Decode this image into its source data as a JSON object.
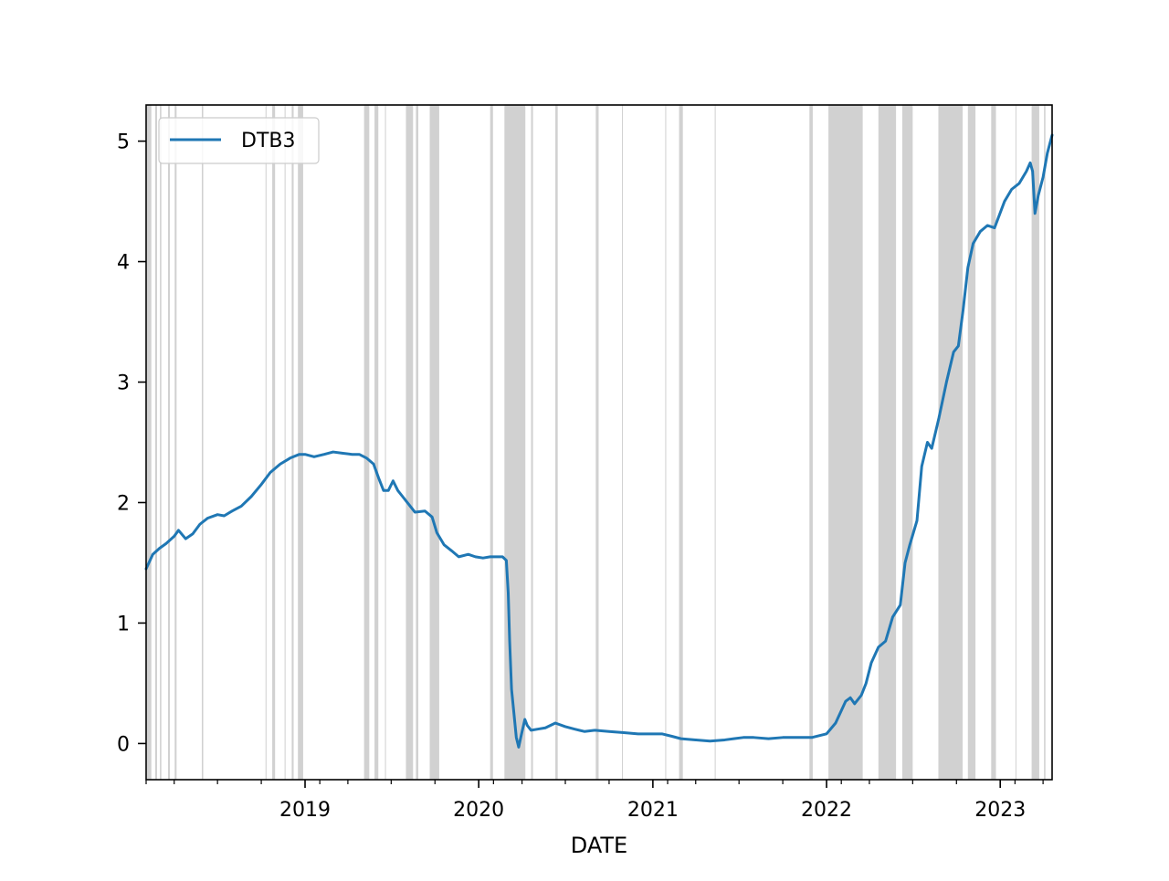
{
  "chart_data": {
    "type": "line",
    "title": "",
    "xlabel": "DATE",
    "ylabel": "",
    "xlim": [
      "2018-02-01",
      "2023-04-20"
    ],
    "ylim": [
      -0.3,
      5.3
    ],
    "x_ticks": [
      "2019",
      "2020",
      "2021",
      "2022",
      "2023"
    ],
    "y_ticks": [
      "0",
      "1",
      "2",
      "3",
      "4",
      "5"
    ],
    "grid": false,
    "legend": {
      "position": "top-left",
      "entries": [
        "DTB3"
      ]
    },
    "colors": {
      "series": "#1f77b4",
      "highlight": "#999999"
    },
    "series": [
      {
        "name": "DTB3",
        "points": [
          [
            "2018-02-01",
            1.45
          ],
          [
            "2018-02-15",
            1.57
          ],
          [
            "2018-03-01",
            1.62
          ],
          [
            "2018-03-15",
            1.66
          ],
          [
            "2018-04-01",
            1.72
          ],
          [
            "2018-04-10",
            1.77
          ],
          [
            "2018-04-25",
            1.7
          ],
          [
            "2018-05-10",
            1.74
          ],
          [
            "2018-05-25",
            1.82
          ],
          [
            "2018-06-10",
            1.87
          ],
          [
            "2018-07-01",
            1.9
          ],
          [
            "2018-07-15",
            1.89
          ],
          [
            "2018-08-01",
            1.93
          ],
          [
            "2018-08-20",
            1.97
          ],
          [
            "2018-09-10",
            2.05
          ],
          [
            "2018-10-01",
            2.15
          ],
          [
            "2018-10-20",
            2.25
          ],
          [
            "2018-11-10",
            2.32
          ],
          [
            "2018-12-01",
            2.37
          ],
          [
            "2018-12-20",
            2.4
          ],
          [
            "2019-01-01",
            2.4
          ],
          [
            "2019-01-20",
            2.38
          ],
          [
            "2019-02-10",
            2.4
          ],
          [
            "2019-03-01",
            2.42
          ],
          [
            "2019-03-20",
            2.41
          ],
          [
            "2019-04-10",
            2.4
          ],
          [
            "2019-04-25",
            2.4
          ],
          [
            "2019-05-10",
            2.37
          ],
          [
            "2019-05-25",
            2.32
          ],
          [
            "2019-06-05",
            2.2
          ],
          [
            "2019-06-15",
            2.1
          ],
          [
            "2019-06-25",
            2.1
          ],
          [
            "2019-07-05",
            2.18
          ],
          [
            "2019-07-15",
            2.1
          ],
          [
            "2019-07-25",
            2.05
          ],
          [
            "2019-08-10",
            1.97
          ],
          [
            "2019-08-20",
            1.92
          ],
          [
            "2019-09-10",
            1.93
          ],
          [
            "2019-09-25",
            1.88
          ],
          [
            "2019-10-05",
            1.75
          ],
          [
            "2019-10-20",
            1.65
          ],
          [
            "2019-11-05",
            1.6
          ],
          [
            "2019-11-20",
            1.55
          ],
          [
            "2019-12-10",
            1.57
          ],
          [
            "2019-12-25",
            1.55
          ],
          [
            "2020-01-10",
            1.54
          ],
          [
            "2020-01-25",
            1.55
          ],
          [
            "2020-02-10",
            1.55
          ],
          [
            "2020-02-20",
            1.55
          ],
          [
            "2020-02-28",
            1.52
          ],
          [
            "2020-03-03",
            1.25
          ],
          [
            "2020-03-06",
            0.85
          ],
          [
            "2020-03-10",
            0.45
          ],
          [
            "2020-03-15",
            0.25
          ],
          [
            "2020-03-20",
            0.05
          ],
          [
            "2020-03-25",
            -0.03
          ],
          [
            "2020-03-31",
            0.08
          ],
          [
            "2020-04-07",
            0.2
          ],
          [
            "2020-04-12",
            0.15
          ],
          [
            "2020-04-20",
            0.11
          ],
          [
            "2020-05-05",
            0.12
          ],
          [
            "2020-05-20",
            0.13
          ],
          [
            "2020-06-10",
            0.17
          ],
          [
            "2020-07-01",
            0.14
          ],
          [
            "2020-07-20",
            0.12
          ],
          [
            "2020-08-10",
            0.1
          ],
          [
            "2020-09-01",
            0.11
          ],
          [
            "2020-10-01",
            0.1
          ],
          [
            "2020-11-01",
            0.09
          ],
          [
            "2020-12-01",
            0.08
          ],
          [
            "2021-01-01",
            0.08
          ],
          [
            "2021-01-20",
            0.08
          ],
          [
            "2021-02-10",
            0.06
          ],
          [
            "2021-03-01",
            0.04
          ],
          [
            "2021-04-01",
            0.03
          ],
          [
            "2021-05-01",
            0.02
          ],
          [
            "2021-06-01",
            0.03
          ],
          [
            "2021-06-20",
            0.04
          ],
          [
            "2021-07-10",
            0.05
          ],
          [
            "2021-08-01",
            0.05
          ],
          [
            "2021-09-01",
            0.04
          ],
          [
            "2021-10-01",
            0.05
          ],
          [
            "2021-11-01",
            0.05
          ],
          [
            "2021-12-01",
            0.05
          ],
          [
            "2022-01-01",
            0.08
          ],
          [
            "2022-01-20",
            0.17
          ],
          [
            "2022-02-10",
            0.35
          ],
          [
            "2022-02-20",
            0.38
          ],
          [
            "2022-03-01",
            0.33
          ],
          [
            "2022-03-15",
            0.4
          ],
          [
            "2022-03-25",
            0.5
          ],
          [
            "2022-04-05",
            0.67
          ],
          [
            "2022-04-20",
            0.8
          ],
          [
            "2022-05-05",
            0.85
          ],
          [
            "2022-05-20",
            1.05
          ],
          [
            "2022-06-05",
            1.15
          ],
          [
            "2022-06-15",
            1.5
          ],
          [
            "2022-06-25",
            1.65
          ],
          [
            "2022-07-10",
            1.85
          ],
          [
            "2022-07-20",
            2.3
          ],
          [
            "2022-08-01",
            2.5
          ],
          [
            "2022-08-10",
            2.45
          ],
          [
            "2022-08-25",
            2.7
          ],
          [
            "2022-09-10",
            3.0
          ],
          [
            "2022-09-25",
            3.25
          ],
          [
            "2022-10-05",
            3.3
          ],
          [
            "2022-10-15",
            3.6
          ],
          [
            "2022-10-25",
            3.95
          ],
          [
            "2022-11-05",
            4.15
          ],
          [
            "2022-11-20",
            4.25
          ],
          [
            "2022-12-05",
            4.3
          ],
          [
            "2022-12-20",
            4.28
          ],
          [
            "2023-01-10",
            4.5
          ],
          [
            "2023-01-25",
            4.6
          ],
          [
            "2023-02-10",
            4.65
          ],
          [
            "2023-02-25",
            4.75
          ],
          [
            "2023-03-05",
            4.82
          ],
          [
            "2023-03-10",
            4.75
          ],
          [
            "2023-03-15",
            4.4
          ],
          [
            "2023-03-22",
            4.55
          ],
          [
            "2023-04-01",
            4.7
          ],
          [
            "2023-04-10",
            4.9
          ],
          [
            "2023-04-20",
            5.05
          ]
        ]
      }
    ],
    "highlight_intervals": [
      [
        "2018-02-03",
        "2018-02-12"
      ],
      [
        "2018-02-20",
        "2018-02-24"
      ],
      [
        "2018-03-02",
        "2018-03-05"
      ],
      [
        "2018-03-19",
        "2018-03-23"
      ],
      [
        "2018-04-02",
        "2018-04-06"
      ],
      [
        "2018-05-29",
        "2018-06-01"
      ],
      [
        "2018-10-10",
        "2018-10-12"
      ],
      [
        "2018-10-24",
        "2018-10-30"
      ],
      [
        "2018-11-19",
        "2018-11-21"
      ],
      [
        "2018-12-04",
        "2018-12-08"
      ],
      [
        "2018-12-17",
        "2018-12-28"
      ],
      [
        "2019-05-05",
        "2019-05-16"
      ],
      [
        "2019-05-27",
        "2019-06-04"
      ],
      [
        "2019-06-18",
        "2019-06-20"
      ],
      [
        "2019-08-01",
        "2019-08-16"
      ],
      [
        "2019-08-22",
        "2019-08-27"
      ],
      [
        "2019-09-20",
        "2019-10-10"
      ],
      [
        "2020-01-25",
        "2020-01-31"
      ],
      [
        "2020-02-24",
        "2020-04-08"
      ],
      [
        "2020-04-20",
        "2020-04-24"
      ],
      [
        "2020-06-10",
        "2020-06-15"
      ],
      [
        "2020-09-03",
        "2020-09-09"
      ],
      [
        "2020-10-28",
        "2020-10-30"
      ],
      [
        "2021-01-27",
        "2021-01-29"
      ],
      [
        "2021-02-25",
        "2021-03-05"
      ],
      [
        "2021-05-11",
        "2021-05-13"
      ],
      [
        "2021-11-26",
        "2021-12-03"
      ],
      [
        "2022-01-05",
        "2022-03-18"
      ],
      [
        "2022-04-20",
        "2022-05-27"
      ],
      [
        "2022-06-09",
        "2022-07-01"
      ],
      [
        "2022-08-24",
        "2022-10-14"
      ],
      [
        "2022-10-25",
        "2022-11-10"
      ],
      [
        "2022-12-13",
        "2022-12-23"
      ],
      [
        "2023-02-02",
        "2023-02-03"
      ],
      [
        "2023-03-08",
        "2023-03-24"
      ],
      [
        "2023-04-03",
        "2023-04-06"
      ]
    ]
  }
}
